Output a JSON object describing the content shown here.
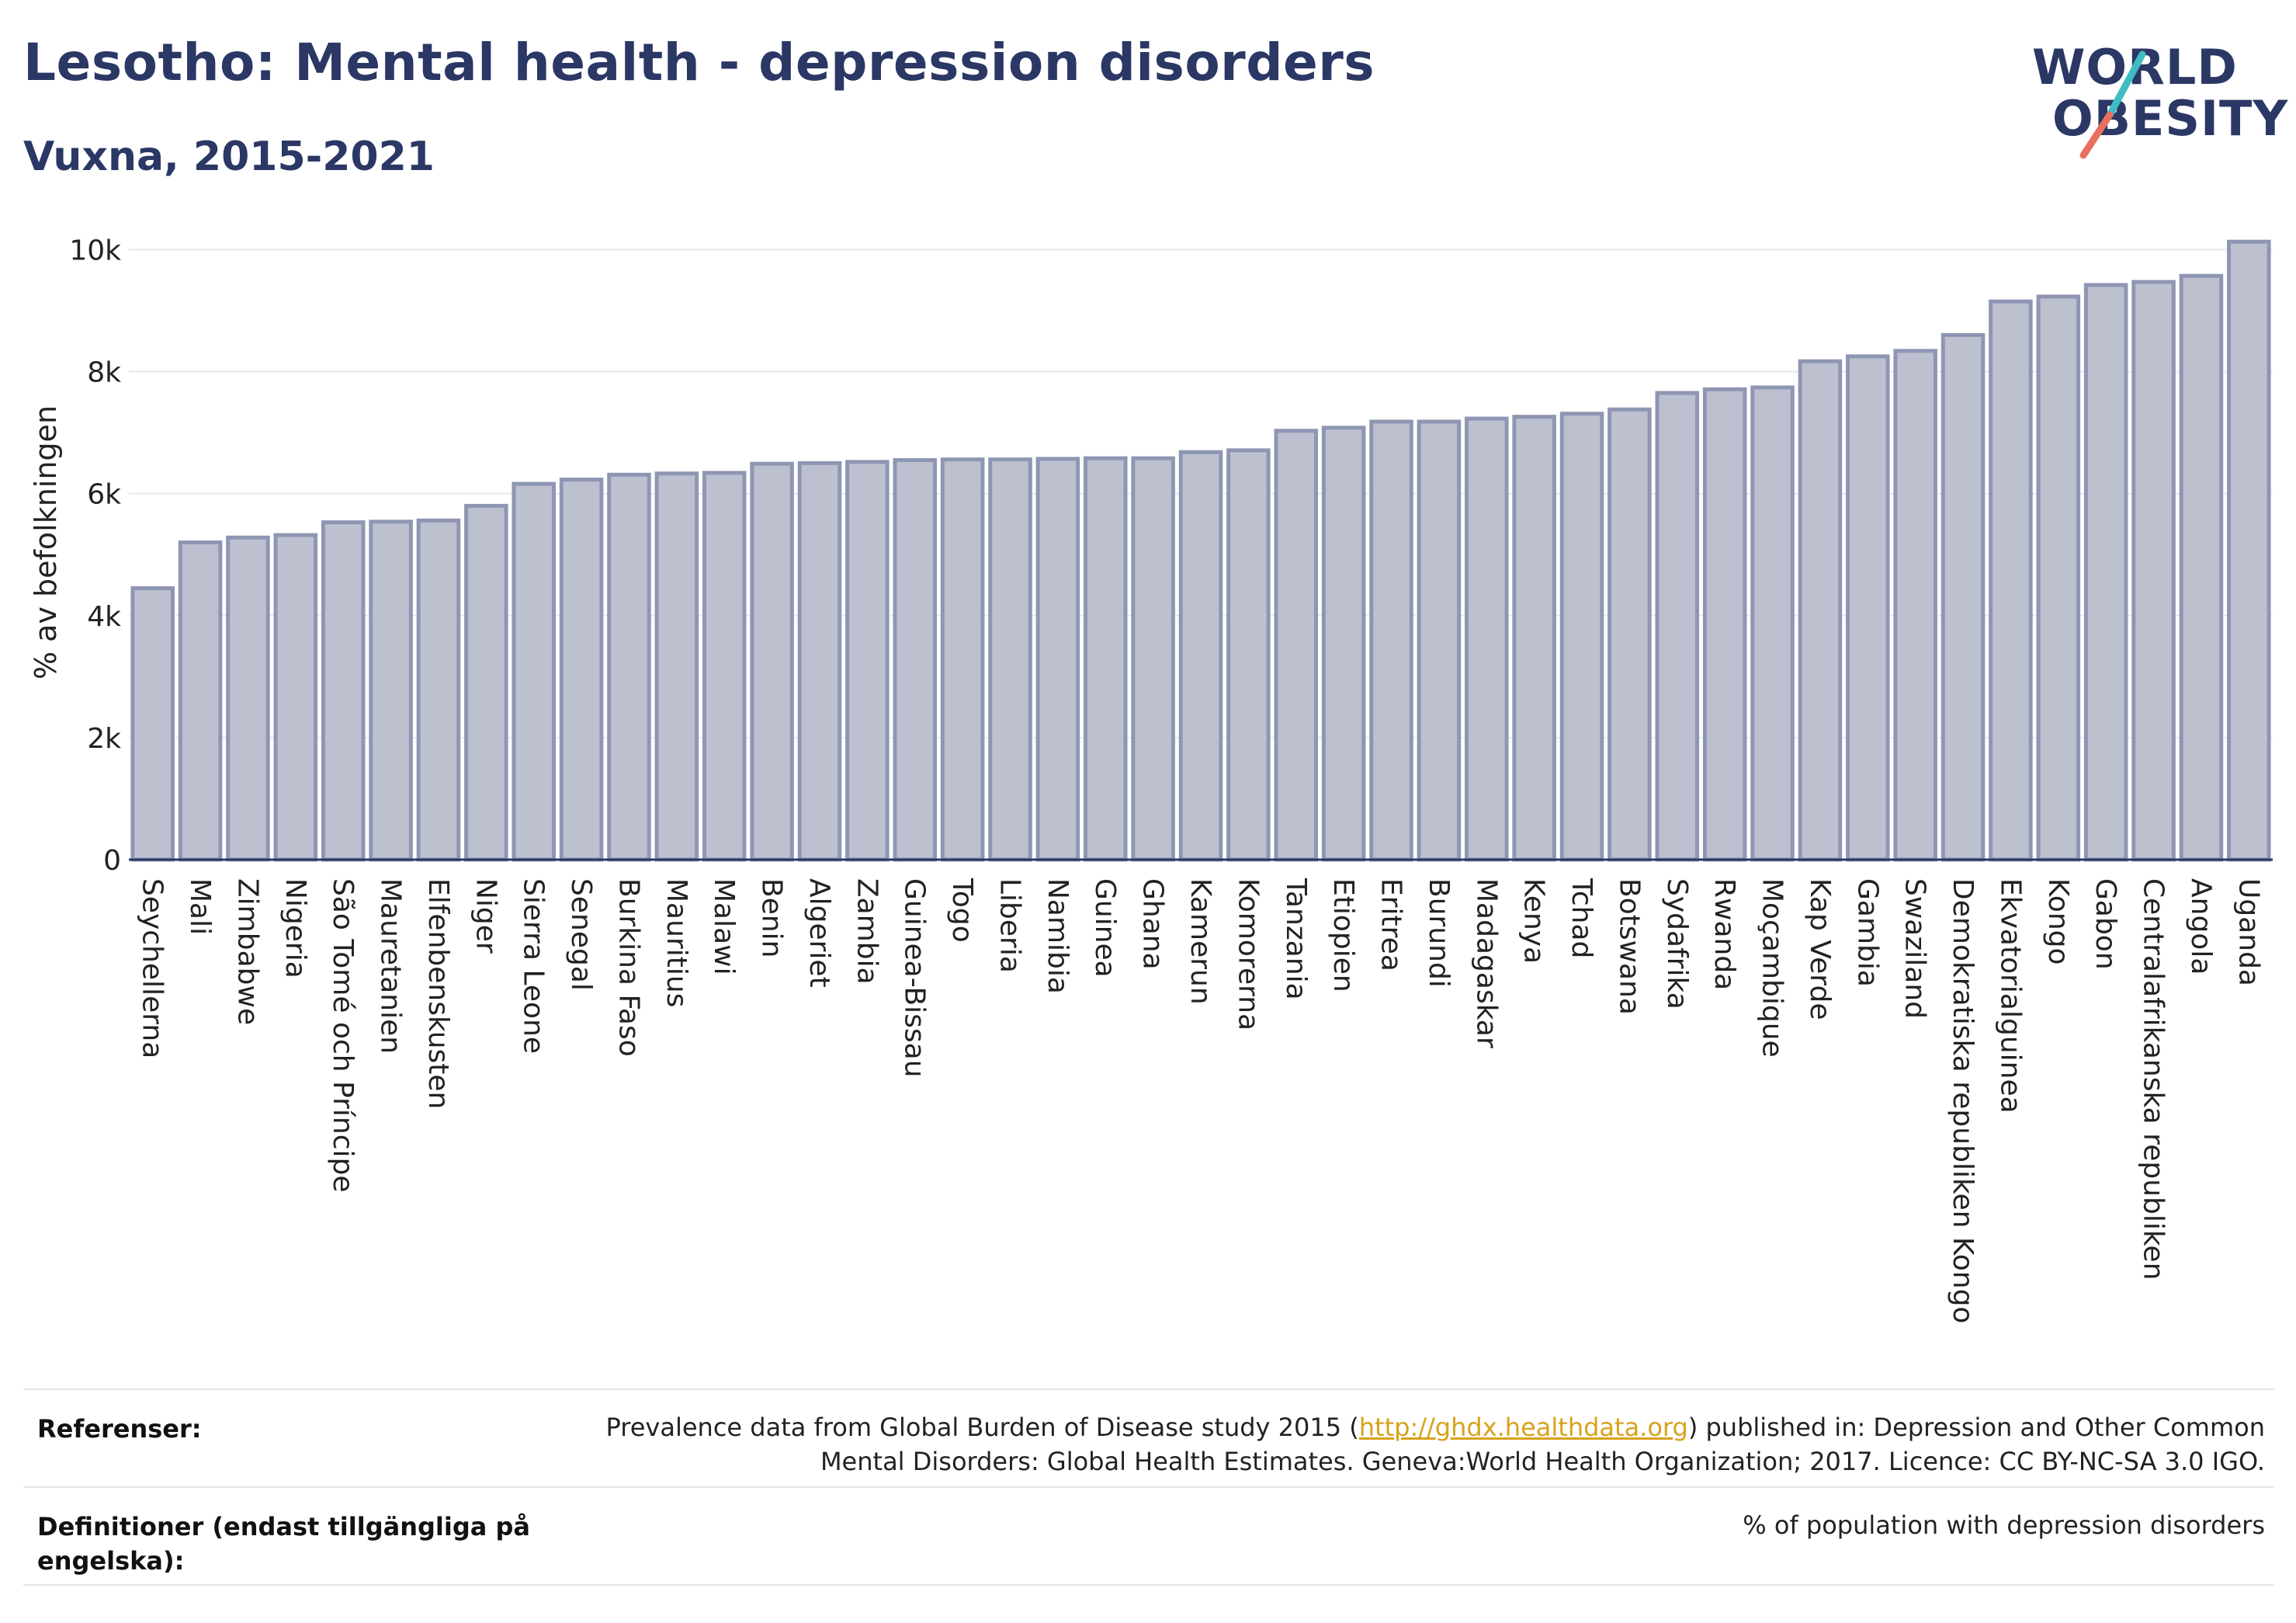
{
  "header": {
    "title": "Lesotho: Mental health - depression disorders",
    "subtitle": "Vuxna, 2015-2021"
  },
  "logo": {
    "line1": "WORLD",
    "line2": "OBESITY",
    "slash_colors": [
      "#3fbcc4",
      "#e8705e"
    ]
  },
  "chart_data": {
    "type": "bar",
    "ylabel": "% av befolkningen",
    "xlabel": "",
    "ylim": [
      0,
      10400
    ],
    "yticks": [
      0,
      2000,
      4000,
      6000,
      8000,
      10000
    ],
    "ytick_labels": [
      "0",
      "2k",
      "4k",
      "6k",
      "8k",
      "10k"
    ],
    "grid": true,
    "bar_color": "#bcc0cf",
    "bar_edge_color": "#8f96b3",
    "categories": [
      "Seychellerna",
      "Mali",
      "Zimbabwe",
      "Nigeria",
      "São Tomé och Príncipe",
      "Mauretanien",
      "Elfenbenskusten",
      "Niger",
      "Sierra Leone",
      "Senegal",
      "Burkina Faso",
      "Mauritius",
      "Malawi",
      "Benin",
      "Algeriet",
      "Zambia",
      "Guinea-Bissau",
      "Togo",
      "Liberia",
      "Namibia",
      "Guinea",
      "Ghana",
      "Kamerun",
      "Komorerna",
      "Tanzania",
      "Etiopien",
      "Eritrea",
      "Burundi",
      "Madagaskar",
      "Kenya",
      "Tchad",
      "Botswana",
      "Sydafrika",
      "Rwanda",
      "Moçambique",
      "Kap Verde",
      "Gambia",
      "Swaziland",
      "Demokratiska republiken Kongo",
      "Ekvatorialguinea",
      "Kongo",
      "Gabon",
      "Centralafrikanska republiken",
      "Angola",
      "Uganda"
    ],
    "values": [
      4450,
      5200,
      5280,
      5320,
      5530,
      5540,
      5560,
      5800,
      6160,
      6230,
      6310,
      6330,
      6340,
      6490,
      6500,
      6520,
      6550,
      6560,
      6560,
      6570,
      6580,
      6580,
      6680,
      6710,
      7030,
      7080,
      7180,
      7180,
      7230,
      7260,
      7310,
      7380,
      7650,
      7710,
      7740,
      8170,
      8250,
      8340,
      8600,
      9150,
      9230,
      9420,
      9470,
      9570,
      10130
    ]
  },
  "footer": {
    "references_label": "Referenser:",
    "references_text_before": "Prevalence data from Global Burden of Disease study 2015 (",
    "references_link": "http://ghdx.healthdata.org",
    "references_text_after": ") published in: Depression and Other Common Mental Disorders: Global Health Estimates. Geneva:World Health Organization; 2017. Licence: CC BY-NC-SA 3.0 IGO.",
    "definitions_label": "Definitioner (endast tillgängliga på engelska):",
    "definitions_text": "% of population with depression disorders"
  }
}
